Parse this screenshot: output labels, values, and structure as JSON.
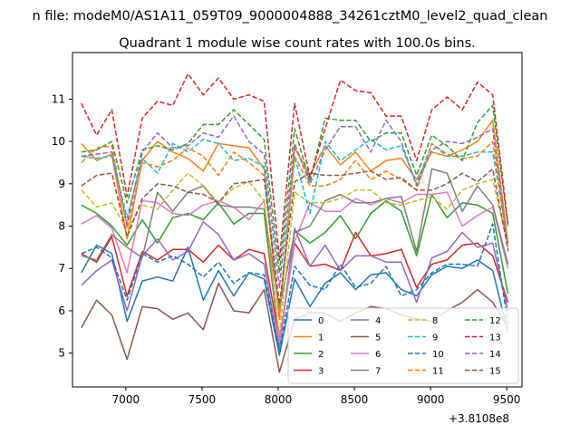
{
  "chart_data": {
    "type": "line",
    "suptitle": "n file: modeM0/AS1A11_059T09_9000004888_34261cztM0_level2_quad_clean",
    "title": "Quadrant 1 module wise count rates with 100.0s bins.",
    "xlabel": "",
    "ylabel": "",
    "x_offset_label": "+3.8108e8",
    "xlim": [
      6650,
      9600
    ],
    "ylim": [
      4.2,
      12.1
    ],
    "xticks": [
      7000,
      7500,
      8000,
      8500,
      9000,
      9500
    ],
    "yticks": [
      5,
      6,
      7,
      8,
      9,
      10,
      11
    ],
    "grid": false,
    "legend_position": "lower-right",
    "x": [
      6708,
      6808,
      6908,
      7008,
      7108,
      7208,
      7308,
      7408,
      7508,
      7608,
      7708,
      7808,
      7908,
      8008,
      8108,
      8208,
      8308,
      8408,
      8508,
      8608,
      8708,
      8808,
      8908,
      9008,
      9108,
      9208,
      9308,
      9408,
      9508
    ],
    "series": [
      {
        "name": "0",
        "color": "#1f77b4",
        "dash": "solid",
        "values": [
          6.9,
          7.55,
          7.35,
          5.75,
          6.7,
          6.8,
          6.7,
          7.5,
          6.25,
          6.95,
          6.35,
          6.9,
          6.75,
          4.95,
          6.75,
          6.1,
          6.65,
          6.9,
          6.5,
          6.85,
          6.9,
          6.5,
          6.35,
          6.85,
          7.05,
          7.0,
          7.2,
          6.95,
          5.5
        ]
      },
      {
        "name": "1",
        "color": "#ff7f0e",
        "dash": "solid",
        "values": [
          9.95,
          9.55,
          9.7,
          7.7,
          9.55,
          10.0,
          9.75,
          9.6,
          9.3,
          9.95,
          9.9,
          9.85,
          9.35,
          5.8,
          9.85,
          9.2,
          9.9,
          9.45,
          9.75,
          9.3,
          9.55,
          9.6,
          9.1,
          9.75,
          9.65,
          9.8,
          10.0,
          10.5,
          7.6
        ]
      },
      {
        "name": "2",
        "color": "#2ca02c",
        "dash": "solid",
        "values": [
          8.5,
          8.3,
          8.0,
          7.55,
          8.15,
          7.6,
          8.2,
          8.3,
          8.15,
          8.55,
          8.05,
          8.3,
          8.3,
          5.2,
          7.9,
          7.6,
          7.85,
          8.25,
          7.7,
          8.3,
          8.6,
          8.35,
          7.3,
          8.75,
          8.2,
          8.55,
          8.5,
          8.3,
          6.4
        ]
      },
      {
        "name": "3",
        "color": "#d62728",
        "dash": "solid",
        "values": [
          7.35,
          7.15,
          7.75,
          6.35,
          7.4,
          7.2,
          7.45,
          7.45,
          7.15,
          7.55,
          7.2,
          7.45,
          7.35,
          5.3,
          7.6,
          7.05,
          7.1,
          6.95,
          7.85,
          7.3,
          7.35,
          7.45,
          6.55,
          7.1,
          7.2,
          7.55,
          7.6,
          7.3,
          6.2
        ]
      },
      {
        "name": "4",
        "color": "#9467bd",
        "dash": "solid",
        "values": [
          6.6,
          6.95,
          7.2,
          6.0,
          7.3,
          7.7,
          7.2,
          7.4,
          8.1,
          7.8,
          7.2,
          7.35,
          7.1,
          5.05,
          7.95,
          7.05,
          7.55,
          6.95,
          7.3,
          7.3,
          7.15,
          7.15,
          6.2,
          7.25,
          7.4,
          7.85,
          7.5,
          7.6,
          6.0
        ]
      },
      {
        "name": "5",
        "color": "#8c564b",
        "dash": "solid",
        "values": [
          5.6,
          6.25,
          5.9,
          4.85,
          6.1,
          6.05,
          5.8,
          5.95,
          5.55,
          6.65,
          6.0,
          5.95,
          6.5,
          4.55,
          5.8,
          5.95,
          5.95,
          5.75,
          5.95,
          6.1,
          6.05,
          5.9,
          5.8,
          5.75,
          6.0,
          6.2,
          6.5,
          6.2,
          5.6
        ]
      },
      {
        "name": "6",
        "color": "#e377c2",
        "dash": "solid",
        "values": [
          8.05,
          8.25,
          7.95,
          6.9,
          8.6,
          8.55,
          8.3,
          8.25,
          8.5,
          8.6,
          8.45,
          8.15,
          8.6,
          5.25,
          7.65,
          8.55,
          8.35,
          8.35,
          8.65,
          8.5,
          8.65,
          8.55,
          8.75,
          8.75,
          8.8,
          8.0,
          8.25,
          8.45,
          7.0
        ]
      },
      {
        "name": "7",
        "color": "#7f7f7f",
        "dash": "solid",
        "values": [
          7.3,
          7.2,
          7.8,
          7.5,
          7.25,
          8.8,
          8.35,
          8.8,
          8.95,
          8.5,
          8.45,
          8.45,
          8.4,
          6.05,
          7.85,
          8.0,
          8.6,
          8.75,
          8.55,
          8.55,
          8.65,
          8.7,
          7.4,
          9.35,
          9.25,
          8.35,
          8.95,
          8.5,
          7.1
        ]
      },
      {
        "name": "8",
        "color": "#bcbd22",
        "dash": "dash",
        "values": [
          8.85,
          8.45,
          8.55,
          7.9,
          8.5,
          8.4,
          8.85,
          9.25,
          8.95,
          8.55,
          8.9,
          9.05,
          8.6,
          5.45,
          8.8,
          8.55,
          8.55,
          8.65,
          8.85,
          8.85,
          8.55,
          8.5,
          8.6,
          8.7,
          8.4,
          8.85,
          9.0,
          9.1,
          7.55
        ]
      },
      {
        "name": "9",
        "color": "#17becf",
        "dash": "dash",
        "values": [
          9.65,
          9.6,
          9.65,
          8.2,
          9.6,
          9.25,
          9.95,
          9.75,
          10.05,
          9.95,
          9.55,
          9.6,
          9.4,
          6.05,
          9.65,
          8.3,
          10.0,
          9.55,
          9.8,
          10.05,
          9.8,
          9.9,
          9.0,
          9.95,
          9.65,
          9.65,
          9.75,
          9.75,
          7.6
        ]
      },
      {
        "name": "10",
        "color": "#1f77b4",
        "dash": "dash",
        "values": [
          7.35,
          7.5,
          7.25,
          6.25,
          7.35,
          7.15,
          7.3,
          7.1,
          6.8,
          7.15,
          6.65,
          6.9,
          6.85,
          5.05,
          7.05,
          6.6,
          6.5,
          7.1,
          6.55,
          6.65,
          7.05,
          6.35,
          6.5,
          6.9,
          7.1,
          7.1,
          7.05,
          8.05,
          5.7
        ]
      },
      {
        "name": "11",
        "color": "#ff7f0e",
        "dash": "dash",
        "values": [
          9.5,
          9.85,
          9.9,
          7.95,
          9.5,
          9.4,
          9.55,
          9.85,
          9.65,
          9.2,
          9.75,
          9.5,
          9.2,
          5.85,
          9.65,
          8.95,
          8.95,
          9.1,
          9.55,
          9.1,
          9.3,
          9.1,
          8.85,
          9.95,
          9.7,
          9.6,
          9.65,
          10.0,
          7.5
        ]
      },
      {
        "name": "12",
        "color": "#2ca02c",
        "dash": "dash",
        "values": [
          9.75,
          9.8,
          10.0,
          8.55,
          9.8,
          9.9,
          9.8,
          9.95,
          10.4,
          10.4,
          10.75,
          10.4,
          10.05,
          6.9,
          10.3,
          9.05,
          10.55,
          10.5,
          10.5,
          10.0,
          10.2,
          10.2,
          9.2,
          10.15,
          9.9,
          9.55,
          10.45,
          10.85,
          8.0
        ]
      },
      {
        "name": "13",
        "color": "#d62728",
        "dash": "dash",
        "values": [
          10.9,
          10.15,
          10.75,
          8.7,
          10.55,
          10.95,
          10.85,
          11.6,
          11.1,
          11.5,
          11.0,
          11.1,
          10.95,
          7.2,
          10.9,
          9.15,
          10.3,
          11.45,
          11.2,
          11.15,
          10.6,
          10.6,
          9.55,
          10.75,
          11.05,
          10.75,
          11.4,
          11.1,
          8.05
        ]
      },
      {
        "name": "14",
        "color": "#9467bd",
        "dash": "dash",
        "values": [
          9.65,
          9.7,
          9.75,
          8.05,
          9.75,
          10.2,
          9.85,
          9.9,
          10.2,
          10.1,
          10.6,
          10.0,
          9.7,
          6.55,
          9.95,
          9.0,
          9.8,
          10.35,
          10.35,
          9.75,
          10.5,
          10.0,
          8.95,
          9.8,
          10.0,
          9.95,
          10.1,
          10.3,
          7.4
        ]
      },
      {
        "name": "15",
        "color": "#8c564b",
        "dash": "dash",
        "values": [
          8.95,
          9.2,
          9.25,
          7.75,
          8.65,
          9.0,
          8.95,
          8.8,
          8.75,
          8.55,
          9.0,
          9.05,
          9.1,
          6.15,
          9.05,
          9.25,
          9.2,
          9.2,
          9.25,
          9.3,
          9.1,
          9.15,
          8.85,
          8.85,
          9.0,
          9.25,
          9.05,
          9.35,
          7.45
        ]
      }
    ]
  }
}
